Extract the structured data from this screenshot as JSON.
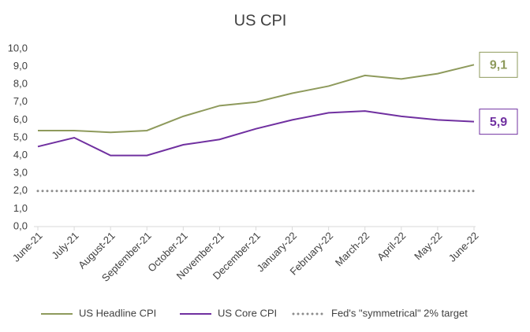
{
  "chart_data": {
    "type": "line",
    "title": "US CPI",
    "categories": [
      "June-21",
      "July-21",
      "August-21",
      "September-21",
      "October-21",
      "November-21",
      "December-21",
      "January-22",
      "February-22",
      "March-22",
      "April-22",
      "May-22",
      "June-22"
    ],
    "series": [
      {
        "name": "US Headline CPI",
        "color": "#8e9a5c",
        "style": "solid",
        "values": [
          5.4,
          5.4,
          5.3,
          5.4,
          6.2,
          6.8,
          7.0,
          7.5,
          7.9,
          8.5,
          8.3,
          8.6,
          9.1
        ],
        "value_labels": [
          null,
          null,
          null,
          null,
          null,
          null,
          null,
          null,
          null,
          null,
          null,
          null,
          "9,1"
        ]
      },
      {
        "name": "US Core CPI",
        "color": "#7030a0",
        "style": "solid",
        "values": [
          4.5,
          5.0,
          4.0,
          4.0,
          4.6,
          4.9,
          5.5,
          6.0,
          6.4,
          6.5,
          6.2,
          6.0,
          5.9
        ],
        "value_labels": [
          null,
          null,
          null,
          null,
          null,
          null,
          null,
          null,
          null,
          null,
          null,
          null,
          "5,9"
        ]
      },
      {
        "name": "Fed's \"symmetrical\" 2% target",
        "color": "#8c8c8c",
        "style": "dotted",
        "values": [
          2,
          2,
          2,
          2,
          2,
          2,
          2,
          2,
          2,
          2,
          2,
          2,
          2
        ]
      }
    ],
    "ylim": [
      0,
      10
    ],
    "yticks": [
      {
        "value": 0,
        "label": "0,0"
      },
      {
        "value": 1,
        "label": "1,0"
      },
      {
        "value": 2,
        "label": "2,0"
      },
      {
        "value": 3,
        "label": "3,0"
      },
      {
        "value": 4,
        "label": "4,0"
      },
      {
        "value": 5,
        "label": "5,0"
      },
      {
        "value": 6,
        "label": "6,0"
      },
      {
        "value": 7,
        "label": "7,0"
      },
      {
        "value": 8,
        "label": "8,0"
      },
      {
        "value": 9,
        "label": "9,0"
      },
      {
        "value": 10,
        "label": "10,0"
      }
    ],
    "grid": false,
    "legend": "bottom"
  }
}
